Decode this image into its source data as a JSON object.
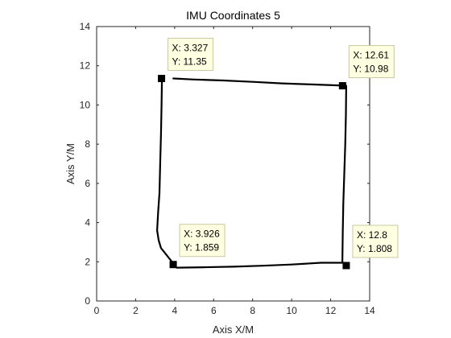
{
  "chart_data": {
    "type": "line",
    "title": "IMU Coordinates 5",
    "xlabel": "Axis X/M",
    "ylabel": "Axis Y/M",
    "xlim": [
      0,
      14
    ],
    "ylim": [
      0,
      14
    ],
    "xticks": [
      0,
      2,
      4,
      6,
      8,
      10,
      12,
      14
    ],
    "yticks": [
      0,
      2,
      4,
      6,
      8,
      10,
      12,
      14
    ],
    "grid": false,
    "series": [
      {
        "color": "#000000",
        "x": [
          3.35,
          3.33,
          3.3,
          3.26,
          3.22,
          3.15,
          3.1,
          3.18,
          3.3,
          4.1,
          5.5,
          7.0,
          8.5,
          10.0,
          11.5,
          12.6,
          12.62,
          12.65,
          12.7,
          12.75,
          12.78,
          12.8,
          12.4,
          11.0,
          9.5,
          8.0,
          6.5,
          5.0,
          3.93
        ],
        "y": [
          11.35,
          10.0,
          8.5,
          7.0,
          5.5,
          4.5,
          3.6,
          3.1,
          2.7,
          1.7,
          1.72,
          1.75,
          1.8,
          1.86,
          1.95,
          1.95,
          3.5,
          5.0,
          6.5,
          8.0,
          9.5,
          10.98,
          11.0,
          11.05,
          11.1,
          11.18,
          11.25,
          11.3,
          11.35
        ]
      }
    ],
    "datatips": [
      {
        "x": 3.327,
        "y": 11.35,
        "xtext": "X: 3.327",
        "ytext": "Y: 11.35"
      },
      {
        "x": 12.61,
        "y": 10.98,
        "xtext": "X: 12.61",
        "ytext": "Y: 10.98"
      },
      {
        "x": 3.926,
        "y": 1.859,
        "xtext": "X: 3.926",
        "ytext": "Y: 1.859"
      },
      {
        "x": 12.8,
        "y": 1.808,
        "xtext": "X: 12.8",
        "ytext": "Y: 1.808"
      }
    ],
    "colors": {
      "line": "#000000",
      "tip_bg": "#FFFFE1",
      "tip_border": "#C8C8A0",
      "axis": "#262626"
    }
  }
}
